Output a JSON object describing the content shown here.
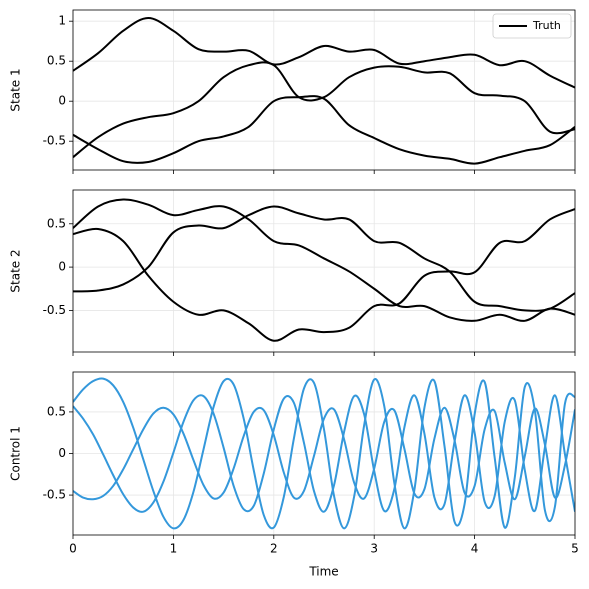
{
  "chart_data": [
    {
      "type": "line",
      "ylabel": "State 1",
      "grid": true,
      "legend": {
        "label": "Truth",
        "color": "#000000",
        "loc": "upper right"
      },
      "x": [
        0,
        0.25,
        0.5,
        0.75,
        1,
        1.25,
        1.5,
        1.75,
        2,
        2.25,
        2.5,
        2.75,
        3,
        3.25,
        3.5,
        3.75,
        4,
        4.25,
        4.5,
        4.75,
        5
      ],
      "series": [
        {
          "color": "#000000",
          "values": [
            0.38,
            0.6,
            0.88,
            1.04,
            0.88,
            0.65,
            0.62,
            0.63,
            0.46,
            0.55,
            0.69,
            0.62,
            0.64,
            0.47,
            0.5,
            0.55,
            0.58,
            0.45,
            0.5,
            0.32,
            0.17
          ]
        },
        {
          "color": "#000000",
          "values": [
            -0.42,
            -0.6,
            -0.75,
            -0.76,
            -0.65,
            -0.5,
            -0.44,
            -0.32,
            0.0,
            0.05,
            0.03,
            -0.3,
            -0.46,
            -0.6,
            -0.68,
            -0.72,
            -0.78,
            -0.7,
            -0.62,
            -0.55,
            -0.32
          ]
        },
        {
          "color": "#000000",
          "values": [
            -0.7,
            -0.45,
            -0.28,
            -0.2,
            -0.15,
            0.0,
            0.3,
            0.45,
            0.45,
            0.05,
            0.05,
            0.3,
            0.42,
            0.43,
            0.36,
            0.35,
            0.1,
            0.07,
            0.0,
            -0.38,
            -0.35
          ]
        }
      ],
      "xlim": [
        0,
        5
      ],
      "xticks": [
        0,
        1,
        2,
        3,
        4,
        5
      ],
      "ylim": [
        -0.86,
        1.14
      ],
      "yticks": [
        -0.5,
        0.0,
        0.5,
        1.0
      ]
    },
    {
      "type": "line",
      "ylabel": "State 2",
      "grid": true,
      "x": [
        0,
        0.25,
        0.5,
        0.75,
        1,
        1.25,
        1.5,
        1.75,
        2,
        2.25,
        2.5,
        2.75,
        3,
        3.25,
        3.5,
        3.75,
        4,
        4.25,
        4.5,
        4.75,
        5
      ],
      "series": [
        {
          "color": "#000000",
          "values": [
            0.45,
            0.7,
            0.78,
            0.72,
            0.6,
            0.66,
            0.7,
            0.55,
            0.3,
            0.25,
            0.1,
            -0.05,
            -0.25,
            -0.45,
            -0.45,
            -0.58,
            -0.62,
            -0.55,
            -0.62,
            -0.48,
            -0.55
          ]
        },
        {
          "color": "#000000",
          "values": [
            0.38,
            0.44,
            0.3,
            -0.1,
            -0.4,
            -0.55,
            -0.5,
            -0.65,
            -0.85,
            -0.72,
            -0.75,
            -0.7,
            -0.45,
            -0.42,
            -0.1,
            -0.05,
            -0.06,
            0.28,
            0.3,
            0.55,
            0.67
          ]
        },
        {
          "color": "#000000",
          "values": [
            -0.28,
            -0.27,
            -0.2,
            0.0,
            0.4,
            0.48,
            0.45,
            0.6,
            0.7,
            0.62,
            0.55,
            0.55,
            0.3,
            0.28,
            0.1,
            -0.05,
            -0.4,
            -0.45,
            -0.5,
            -0.48,
            -0.3
          ]
        }
      ],
      "xlim": [
        0,
        5
      ],
      "xticks": [
        0,
        1,
        2,
        3,
        4,
        5
      ],
      "ylim": [
        -0.98,
        0.89
      ],
      "yticks": [
        -0.5,
        0.0,
        0.5
      ]
    },
    {
      "type": "line",
      "ylabel": "Control 1",
      "xlabel": "Time",
      "grid": true,
      "x": [
        0,
        0.1,
        0.2,
        0.3,
        0.4,
        0.5,
        0.6,
        0.7,
        0.8,
        0.9,
        1.0,
        1.1,
        1.2,
        1.3,
        1.4,
        1.5,
        1.6,
        1.7,
        1.8,
        1.9,
        2.0,
        2.1,
        2.2,
        2.3,
        2.4,
        2.5,
        2.6,
        2.7,
        2.8,
        2.9,
        3.0,
        3.1,
        3.2,
        3.3,
        3.4,
        3.5,
        3.6,
        3.7,
        3.8,
        3.9,
        4.0,
        4.1,
        4.2,
        4.3,
        4.4,
        4.5,
        4.6,
        4.7,
        4.8,
        4.9,
        5.0
      ],
      "series": [
        {
          "color": "#3498db",
          "values": [
            0.62,
            0.77,
            0.87,
            0.9,
            0.82,
            0.62,
            0.31,
            -0.07,
            -0.45,
            -0.76,
            -0.9,
            -0.8,
            -0.46,
            0.05,
            0.56,
            0.87,
            0.83,
            0.42,
            -0.2,
            -0.74,
            -0.89,
            -0.52,
            0.18,
            0.78,
            0.85,
            0.29,
            -0.51,
            -0.9,
            -0.52,
            0.34,
            0.89,
            0.57,
            -0.35,
            -0.9,
            -0.44,
            0.55,
            0.87,
            0.09,
            -0.82,
            -0.61,
            0.47,
            0.86,
            -0.05,
            -0.89,
            -0.29,
            0.8,
            0.52,
            -0.68,
            -0.64,
            0.6,
            0.68
          ]
        },
        {
          "color": "#3498db",
          "values": [
            0.57,
            0.42,
            0.23,
            -0.01,
            -0.26,
            -0.49,
            -0.65,
            -0.7,
            -0.59,
            -0.34,
            0.01,
            0.38,
            0.64,
            0.69,
            0.48,
            0.07,
            -0.39,
            -0.67,
            -0.63,
            -0.24,
            0.29,
            0.66,
            0.61,
            0.13,
            -0.45,
            -0.7,
            -0.38,
            0.26,
            0.69,
            0.47,
            -0.21,
            -0.69,
            -0.43,
            0.31,
            0.7,
            0.24,
            -0.53,
            -0.61,
            0.14,
            0.7,
            0.25,
            -0.58,
            -0.51,
            0.38,
            0.64,
            -0.2,
            -0.69,
            0.07,
            0.7,
            -0.01,
            -0.7
          ]
        },
        {
          "color": "#3498db",
          "values": [
            -0.45,
            -0.53,
            -0.55,
            -0.51,
            -0.39,
            -0.19,
            0.05,
            0.29,
            0.48,
            0.55,
            0.47,
            0.24,
            -0.08,
            -0.38,
            -0.54,
            -0.47,
            -0.18,
            0.21,
            0.5,
            0.52,
            0.22,
            -0.23,
            -0.53,
            -0.45,
            -0.03,
            0.42,
            0.53,
            0.17,
            -0.35,
            -0.54,
            -0.18,
            0.38,
            0.52,
            0.06,
            -0.48,
            -0.43,
            0.18,
            0.55,
            0.16,
            -0.47,
            -0.39,
            0.29,
            0.51,
            -0.11,
            -0.55,
            -0.03,
            0.54,
            0.11,
            -0.53,
            -0.14,
            0.53
          ]
        }
      ],
      "xlim": [
        0,
        5
      ],
      "xticks": [
        0,
        1,
        2,
        3,
        4,
        5
      ],
      "ylim": [
        -0.98,
        0.98
      ],
      "yticks": [
        -0.5,
        0.0,
        0.5
      ]
    }
  ]
}
